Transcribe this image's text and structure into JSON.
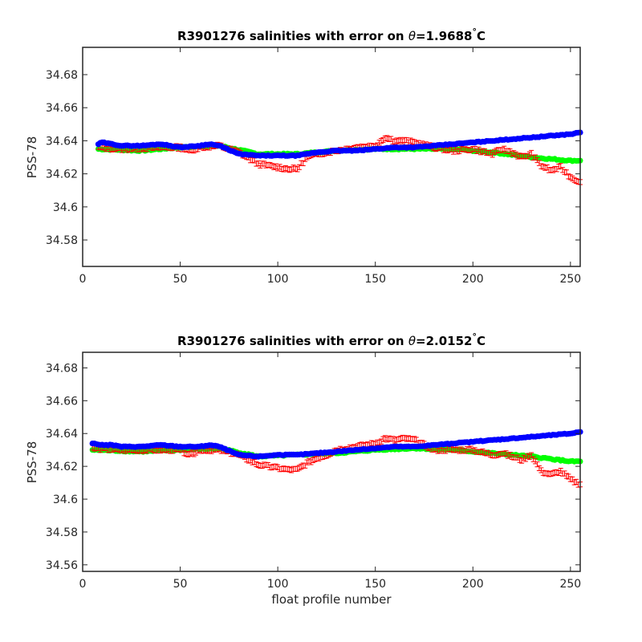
{
  "chart_data": [
    {
      "type": "scatter",
      "title_prefix": "R3901276 salinities with error on ",
      "title_theta": "θ",
      "title_value": "=1.9688",
      "title_degree": "°",
      "title_unit": "C",
      "xlabel": "",
      "ylabel": "PSS-78",
      "xlim": [
        0,
        255
      ],
      "ylim": [
        34.564,
        34.6965
      ],
      "xticks": [
        0,
        50,
        100,
        150,
        200,
        250
      ],
      "xtick_labels": [
        "0",
        "50",
        "100",
        "150",
        "200",
        "250"
      ],
      "yticks": [
        34.58,
        34.6,
        34.62,
        34.64,
        34.66,
        34.68
      ],
      "ytick_labels": [
        "34.58",
        "34.6",
        "34.62",
        "34.64",
        "34.66",
        "34.68"
      ],
      "series_colors": {
        "error": "#ff0000",
        "reference": "#00ff00",
        "calibrated": "#0000ff"
      },
      "error_series": {
        "x": [
          8,
          20,
          40,
          50,
          55,
          60,
          70,
          80,
          90,
          95,
          100,
          105,
          110,
          115,
          120,
          125,
          130,
          140,
          150,
          155,
          160,
          165,
          170,
          180,
          190,
          200,
          210,
          215,
          220,
          225,
          230,
          235,
          240,
          245,
          250,
          255
        ],
        "y": [
          34.636,
          34.635,
          34.636,
          34.636,
          34.634,
          34.636,
          34.637,
          34.633,
          34.626,
          34.625,
          34.624,
          34.623,
          34.623,
          34.63,
          34.632,
          34.633,
          34.634,
          34.636,
          34.637,
          34.642,
          34.64,
          34.64,
          34.639,
          34.636,
          34.634,
          34.635,
          34.632,
          34.635,
          34.633,
          34.63,
          34.632,
          34.625,
          34.622,
          34.624,
          34.618,
          34.615
        ],
        "err": 0.0015
      },
      "reference_series": {
        "x": [
          8,
          30,
          50,
          70,
          90,
          110,
          130,
          150,
          170,
          190,
          210,
          230,
          250,
          255
        ],
        "y": [
          34.635,
          34.634,
          34.636,
          34.637,
          34.632,
          34.632,
          34.634,
          34.635,
          34.635,
          34.635,
          34.633,
          34.63,
          34.628,
          34.628
        ]
      },
      "calibrated_series": {
        "x": [
          8,
          10,
          15,
          20,
          30,
          40,
          50,
          60,
          65,
          70,
          80,
          90,
          100,
          110,
          120,
          130,
          140,
          150,
          160,
          170,
          180,
          190,
          200,
          210,
          220,
          230,
          240,
          250,
          255
        ],
        "y": [
          34.638,
          34.639,
          34.638,
          34.637,
          34.637,
          34.638,
          34.636,
          34.637,
          34.638,
          34.637,
          34.632,
          34.631,
          34.631,
          34.631,
          34.633,
          34.634,
          34.634,
          34.635,
          34.636,
          34.636,
          34.637,
          34.638,
          34.639,
          34.64,
          34.641,
          34.642,
          34.643,
          34.644,
          34.645
        ]
      }
    },
    {
      "type": "scatter",
      "title_prefix": "R3901276 salinities with error on ",
      "title_theta": "θ",
      "title_value": "=2.0152",
      "title_degree": "°",
      "title_unit": "C",
      "xlabel": "float profile number",
      "ylabel": "PSS-78",
      "xlim": [
        0,
        255
      ],
      "ylim": [
        34.556,
        34.6895
      ],
      "xticks": [
        0,
        50,
        100,
        150,
        200,
        250
      ],
      "xtick_labels": [
        "0",
        "50",
        "100",
        "150",
        "200",
        "250"
      ],
      "yticks": [
        34.56,
        34.58,
        34.6,
        34.62,
        34.64,
        34.66,
        34.68
      ],
      "ytick_labels": [
        "34.56",
        "34.58",
        "34.6",
        "34.62",
        "34.64",
        "34.66",
        "34.68"
      ],
      "series_colors": {
        "error": "#ff0000",
        "reference": "#00ff00",
        "calibrated": "#0000ff"
      },
      "error_series": {
        "x": [
          5,
          20,
          40,
          50,
          55,
          60,
          70,
          80,
          90,
          95,
          100,
          105,
          110,
          115,
          120,
          125,
          130,
          140,
          150,
          155,
          160,
          165,
          170,
          180,
          190,
          200,
          210,
          215,
          220,
          225,
          230,
          235,
          240,
          245,
          250,
          255
        ],
        "y": [
          34.631,
          34.63,
          34.63,
          34.63,
          34.627,
          34.63,
          34.63,
          34.627,
          34.621,
          34.62,
          34.619,
          34.618,
          34.618,
          34.622,
          34.625,
          34.627,
          34.63,
          34.632,
          34.634,
          34.637,
          34.636,
          34.637,
          34.636,
          34.63,
          34.63,
          34.63,
          34.627,
          34.628,
          34.626,
          34.624,
          34.627,
          34.617,
          34.615,
          34.617,
          34.612,
          34.609
        ],
        "err": 0.0015
      },
      "reference_series": {
        "x": [
          5,
          30,
          50,
          70,
          90,
          110,
          130,
          150,
          170,
          190,
          210,
          230,
          250,
          255
        ],
        "y": [
          34.63,
          34.629,
          34.63,
          34.631,
          34.626,
          34.627,
          34.628,
          34.63,
          34.631,
          34.63,
          34.628,
          34.626,
          34.623,
          34.623
        ]
      },
      "calibrated_series": {
        "x": [
          5,
          10,
          15,
          20,
          30,
          40,
          50,
          60,
          65,
          70,
          80,
          90,
          100,
          110,
          120,
          130,
          140,
          150,
          160,
          170,
          180,
          190,
          200,
          210,
          220,
          230,
          240,
          250,
          255
        ],
        "y": [
          34.634,
          34.633,
          34.633,
          34.632,
          34.632,
          34.633,
          34.632,
          34.632,
          34.633,
          34.632,
          34.627,
          34.626,
          34.627,
          34.627,
          34.628,
          34.629,
          34.63,
          34.631,
          34.632,
          34.632,
          34.633,
          34.634,
          34.635,
          34.636,
          34.637,
          34.638,
          34.639,
          34.64,
          34.641
        ]
      }
    }
  ]
}
